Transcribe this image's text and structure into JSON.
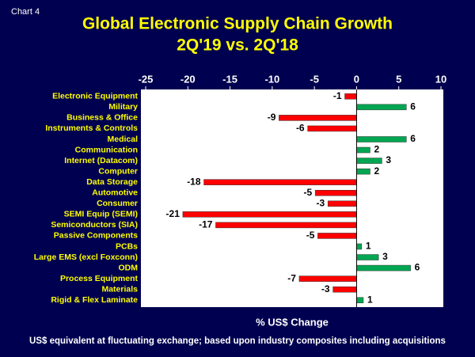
{
  "chart_data": {
    "type": "hbar",
    "annotation": "Chart 4",
    "title": "Global Electronic Supply Chain Growth",
    "subtitle": "2Q'19 vs. 2Q'18",
    "x_label": "% US$ Change",
    "footnote": "US$ equivalent at fluctuating exchange; based upon industry composites  including acquisitions",
    "categories": [
      "Electronic Equipment",
      "Military",
      "Business & Office",
      "Instruments & Controls",
      "Medical",
      "Communication",
      "Internet (Datacom)",
      "Computer",
      "Data Storage",
      "Automotive",
      "Consumer",
      "SEMI Equip (SEMI)",
      "Semiconductors (SIA)",
      "Passive Components",
      "PCBs",
      "Large EMS (excl Foxconn)",
      "ODM",
      "Process Equipment",
      "Materials",
      "Rigid & Flex Laminate"
    ],
    "values": [
      -1.4,
      5.9,
      -9.2,
      -5.8,
      5.9,
      1.6,
      3.0,
      1.6,
      -18.1,
      -4.9,
      -3.4,
      -20.6,
      -16.7,
      -4.6,
      0.6,
      2.6,
      6.4,
      -6.8,
      -2.8,
      0.8
    ],
    "value_labels": [
      "-1",
      "6",
      "-9",
      "-6",
      "6",
      "2",
      "3",
      "2",
      "-18",
      "-5",
      "-3",
      "-21",
      "-17",
      "-5",
      "1",
      "3",
      "6",
      "-7",
      "-3",
      "1"
    ],
    "negative_color": "#ff0000",
    "positive_color": "#00a651",
    "xlim": [
      -25,
      10
    ],
    "xticks": [
      -25,
      -20,
      -15,
      -10,
      -5,
      0,
      5,
      10
    ],
    "grid": false
  }
}
